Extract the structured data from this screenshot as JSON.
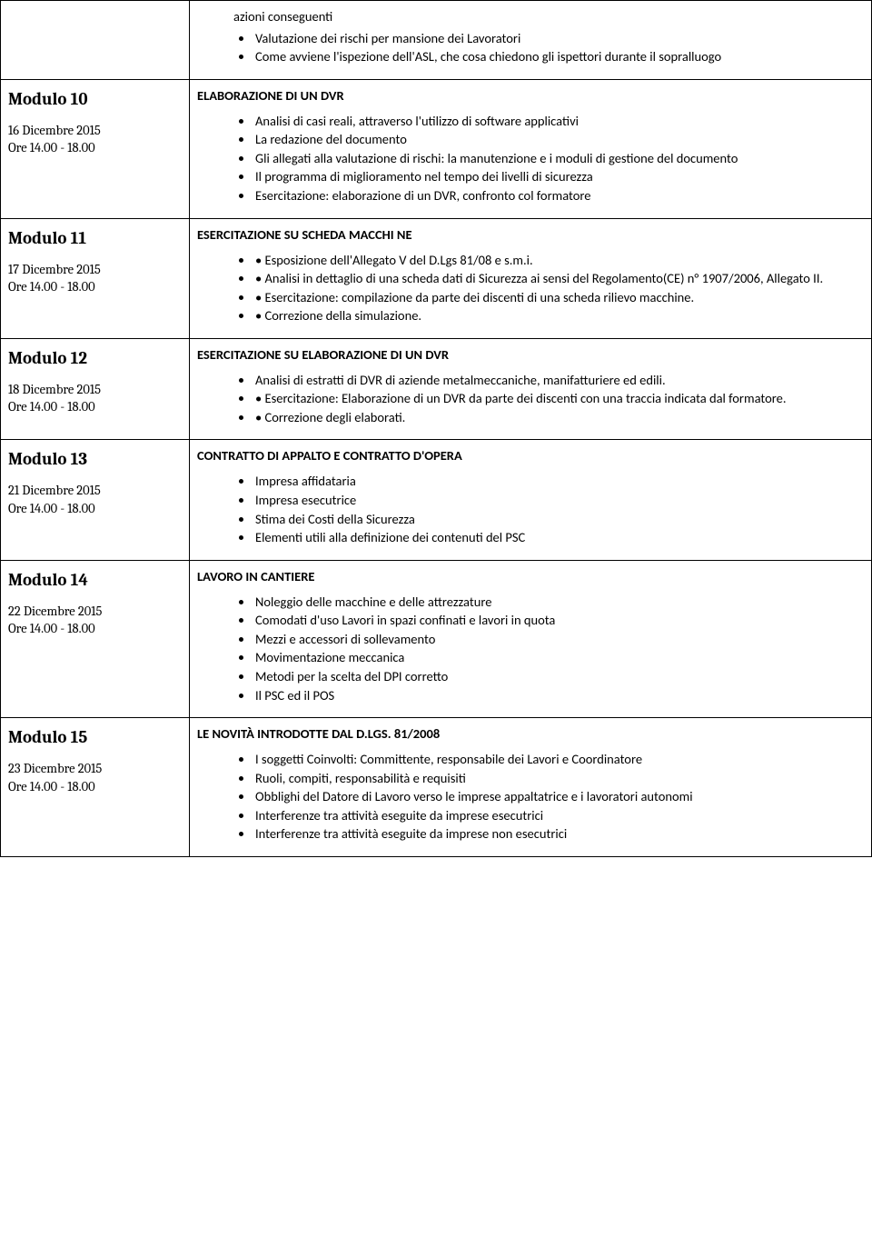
{
  "intro": {
    "lead": "azioni conseguenti",
    "bullets": [
      " Valutazione dei rischi per mansione dei Lavoratori",
      " Come avviene l'ispezione dell'ASL, che cosa chiedono gli ispettori durante il sopralluogo"
    ]
  },
  "rows": [
    {
      "module": "Modulo 10",
      "date": "16 Dicembre 2015",
      "time": "Ore 14.00 - 18.00",
      "section": "ELABORAZIONE DI UN DVR",
      "bullets": [
        "Analisi di casi reali, attraverso l'utilizzo di software applicativi",
        "La redazione del documento",
        " Gli allegati alla valutazione di rischi: la manutenzione e i moduli di gestione del documento",
        " Il programma di miglioramento nel tempo dei livelli di sicurezza",
        " Esercitazione: elaborazione di un DVR, confronto col formatore"
      ]
    },
    {
      "module": "Modulo 11",
      "date": "17 Dicembre 2015",
      "time": "Ore 14.00 - 18.00",
      "section": "ESERCITAZIONE SU SCHEDA MACCHI NE",
      "bullets": [
        "• Esposizione dell'Allegato V del D.Lgs 81/08 e s.m.i.",
        "• Analisi in dettaglio di una scheda dati di Sicurezza ai sensi del Regolamento(CE) n° 1907/2006, Allegato II.",
        "• Esercitazione: compilazione da parte dei discenti di una scheda rilievo macchine.",
        "• Correzione della simulazione."
      ]
    },
    {
      "module": "Modulo 12",
      "date": "18 Dicembre 2015",
      "time": "Ore 14.00 - 18.00",
      "section": "ESERCITAZIONE SU ELABORAZIONE DI UN DVR",
      "bullets": [
        "Analisi di estratti di DVR di aziende metalmeccaniche, manifatturiere ed edili.",
        "• Esercitazione: Elaborazione di un DVR da parte dei discenti con una traccia indicata dal formatore.",
        "• Correzione degli elaborati."
      ]
    },
    {
      "module": "Modulo 13",
      "date": "21 Dicembre 2015",
      "time": "Ore 14.00 - 18.00",
      "section": "CONTRATTO DI APPALTO E CONTRATTO D'OPERA",
      "bullets": [
        "Impresa affidataria",
        "Impresa esecutrice",
        "Stima dei Costi della Sicurezza",
        "Elementi utili alla definizione dei contenuti del PSC"
      ]
    },
    {
      "module": "Modulo 14",
      "date": "22 Dicembre 2015",
      "time": "Ore 14.00 - 18.00",
      "section": "LAVORO IN CANTIERE",
      "bullets": [
        "Noleggio delle macchine e delle attrezzature",
        "Comodati d'uso Lavori in spazi confinati e lavori in quota",
        "Mezzi e accessori di sollevamento",
        "Movimentazione meccanica",
        "Metodi per la scelta del DPI corretto",
        "Il PSC ed il POS"
      ]
    },
    {
      "module": "Modulo 15",
      "date": "23 Dicembre 2015",
      "time": "Ore 14.00 - 18.00",
      "section": "LE NOVITÀ INTRODOTTE DAL D.LGS. 81/2008",
      "bullets": [
        "I soggetti Coinvolti: Committente, responsabile dei Lavori e Coordinatore",
        "Ruoli, compiti, responsabilità e requisiti",
        "Obblighi del Datore di Lavoro verso le imprese appaltatrice e i lavoratori autonomi",
        "Interferenze tra attività eseguite da imprese esecutrici",
        "Interferenze tra attività eseguite da imprese non esecutrici"
      ]
    }
  ]
}
